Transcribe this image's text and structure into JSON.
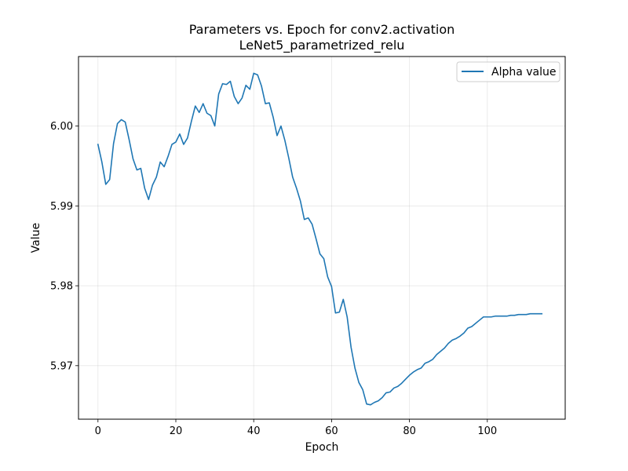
{
  "chart_data": {
    "type": "line",
    "title": "Parameters vs. Epoch for conv2.activation",
    "subtitle": "LeNet5_parametrized_relu",
    "xlabel": "Epoch",
    "ylabel": "Value",
    "xlim": [
      -5,
      120
    ],
    "ylim": [
      5.9633,
      6.0087
    ],
    "xticks": [
      0,
      20,
      40,
      60,
      80,
      100
    ],
    "yticks": [
      5.97,
      5.98,
      5.99,
      6.0
    ],
    "xtick_labels": [
      "0",
      "20",
      "40",
      "60",
      "80",
      "100"
    ],
    "ytick_labels": [
      "5.97",
      "5.98",
      "5.99",
      "6.00"
    ],
    "grid": true,
    "legend_position": "upper right",
    "series": [
      {
        "name": "Alpha value",
        "color": "#1f77b4",
        "x": [
          0,
          1,
          2,
          3,
          4,
          5,
          6,
          7,
          8,
          9,
          10,
          11,
          12,
          13,
          14,
          15,
          16,
          17,
          18,
          19,
          20,
          21,
          22,
          23,
          24,
          25,
          26,
          27,
          28,
          29,
          30,
          31,
          32,
          33,
          34,
          35,
          36,
          37,
          38,
          39,
          40,
          41,
          42,
          43,
          44,
          45,
          46,
          47,
          48,
          49,
          50,
          51,
          52,
          53,
          54,
          55,
          56,
          57,
          58,
          59,
          60,
          61,
          62,
          63,
          64,
          65,
          66,
          67,
          68,
          69,
          70,
          71,
          72,
          73,
          74,
          75,
          76,
          77,
          78,
          79,
          80,
          81,
          82,
          83,
          84,
          85,
          86,
          87,
          88,
          89,
          90,
          91,
          92,
          93,
          94,
          95,
          96,
          97,
          98,
          99,
          100,
          101,
          102,
          103,
          104,
          105,
          106,
          107,
          108,
          109,
          110,
          111,
          112,
          113,
          114
        ],
        "values": [
          5.9977,
          5.9955,
          5.9927,
          5.9933,
          5.9978,
          6.0003,
          6.0008,
          6.0005,
          5.9983,
          5.9959,
          5.9945,
          5.9947,
          5.9922,
          5.9908,
          5.9926,
          5.9936,
          5.9955,
          5.9949,
          5.9962,
          5.9977,
          5.998,
          5.999,
          5.9977,
          5.9985,
          6.0006,
          6.0025,
          6.0017,
          6.0028,
          6.0016,
          6.0013,
          6.0,
          6.004,
          6.0053,
          6.0052,
          6.0056,
          6.0037,
          6.0028,
          6.0035,
          6.0051,
          6.0046,
          6.0066,
          6.0064,
          6.005,
          6.0028,
          6.0029,
          6.0011,
          5.9988,
          6.0,
          5.9982,
          5.996,
          5.9936,
          5.9922,
          5.9906,
          5.9883,
          5.9885,
          5.9877,
          5.9859,
          5.984,
          5.9834,
          5.9811,
          5.9799,
          5.9766,
          5.9767,
          5.9783,
          5.9761,
          5.9723,
          5.9697,
          5.9679,
          5.967,
          5.9652,
          5.9651,
          5.9654,
          5.9656,
          5.966,
          5.9666,
          5.9667,
          5.9672,
          5.9674,
          5.9678,
          5.9683,
          5.9688,
          5.9692,
          5.9695,
          5.9697,
          5.9703,
          5.9705,
          5.9708,
          5.9714,
          5.9718,
          5.9722,
          5.9728,
          5.9732,
          5.9734,
          5.9737,
          5.9741,
          5.9747,
          5.9749,
          5.9753,
          5.9757,
          5.9761,
          5.9761,
          5.9761,
          5.9762,
          5.9762,
          5.9762,
          5.9762,
          5.9763,
          5.9763,
          5.9764,
          5.9764,
          5.9764,
          5.9765,
          5.9765,
          5.9765,
          5.9765
        ]
      }
    ]
  }
}
